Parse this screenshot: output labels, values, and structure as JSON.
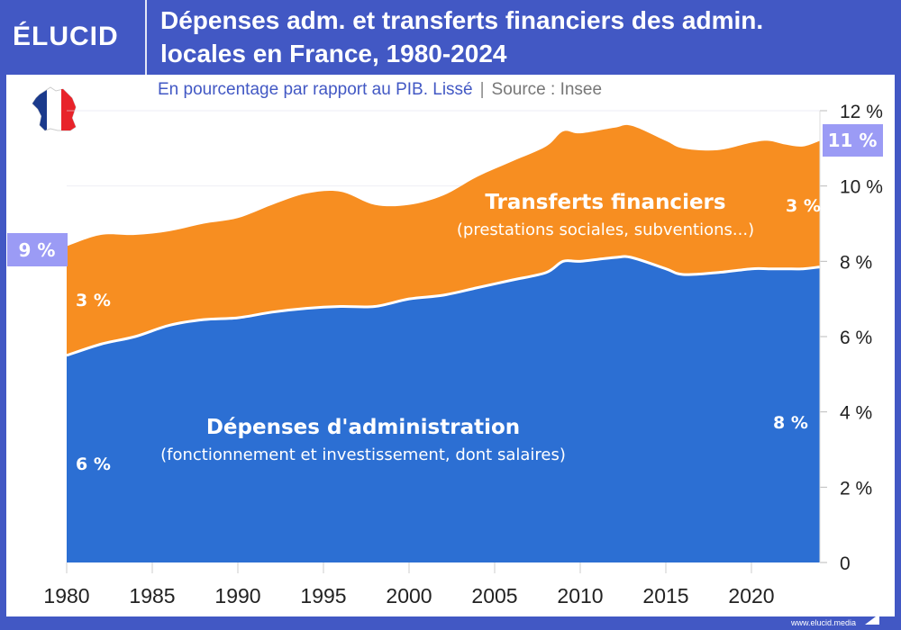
{
  "header": {
    "logo": "ÉLUCID",
    "title_line1": "Dépenses adm. et transferts financiers des admin.",
    "title_line2": "locales en France, 1980-2024"
  },
  "subtitle": {
    "text": "En pourcentage par rapport au PIB. Lissé",
    "separator": "|",
    "source": "Source : Insee"
  },
  "footer": {
    "url": "www.elucid.media"
  },
  "colors": {
    "frame": "#4258c4",
    "admin": "#2c6fd3",
    "transfers": "#f78e21",
    "badge": "#9b9bf5"
  },
  "chart_data": {
    "type": "area",
    "stacked": true,
    "x": [
      1980,
      1982,
      1984,
      1986,
      1988,
      1990,
      1992,
      1994,
      1996,
      1998,
      2000,
      2002,
      2004,
      2006,
      2008,
      2009,
      2010,
      2012,
      2013,
      2015,
      2016,
      2018,
      2020,
      2021,
      2022,
      2023,
      2024
    ],
    "series": [
      {
        "name": "Dépenses d'administration",
        "subname": "(fonctionnement et investissement, dont salaires)",
        "color": "#2c6fd3",
        "values": [
          5.5,
          5.8,
          6.0,
          6.3,
          6.45,
          6.5,
          6.65,
          6.75,
          6.8,
          6.8,
          7.0,
          7.1,
          7.3,
          7.5,
          7.7,
          8.0,
          8.0,
          8.1,
          8.1,
          7.8,
          7.65,
          7.7,
          7.8,
          7.8,
          7.8,
          7.8,
          7.85
        ]
      },
      {
        "name": "Transferts financiers",
        "subname": "(prestations sociales, subventions...)",
        "color": "#f78e21",
        "values": [
          2.9,
          2.9,
          2.7,
          2.5,
          2.55,
          2.65,
          2.85,
          3.05,
          3.05,
          2.7,
          2.5,
          2.65,
          2.95,
          3.15,
          3.35,
          3.45,
          3.4,
          3.45,
          3.5,
          3.4,
          3.35,
          3.25,
          3.35,
          3.4,
          3.3,
          3.25,
          3.35
        ]
      }
    ],
    "xlim": [
      1980,
      2024
    ],
    "ylim": [
      0,
      12
    ],
    "xticks": [
      "1980",
      "1985",
      "1990",
      "1995",
      "2000",
      "2005",
      "2010",
      "2015",
      "2020"
    ],
    "yticks": [
      "0",
      "2 %",
      "4 %",
      "6 %",
      "8 %",
      "10 %",
      "12 %"
    ],
    "grid": true,
    "annotations": {
      "start_total": "9 %",
      "end_total": "11 %",
      "admin_start": "6 %",
      "admin_end": "8 %",
      "transfers_start": "3 %",
      "transfers_end": "3 %"
    }
  }
}
